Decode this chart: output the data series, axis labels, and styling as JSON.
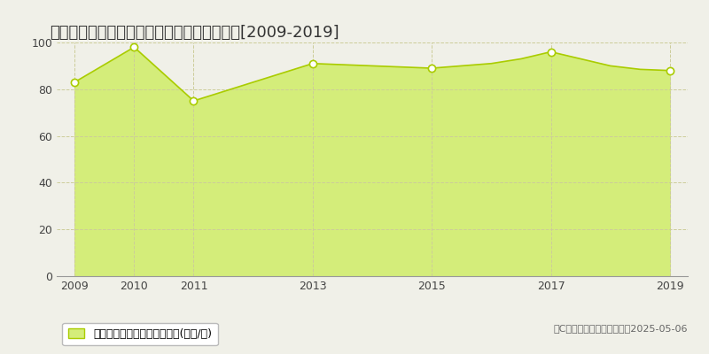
{
  "title": "大阪狹山市池尻自由丘　マンション価格抚移[2009-2019]",
  "years": [
    2009,
    2010,
    2011,
    2013,
    2013.5,
    2014,
    2014.5,
    2015,
    2015.5,
    2016,
    2016.5,
    2017,
    2017.5,
    2018,
    2018.5,
    2019
  ],
  "values": [
    83,
    98,
    75,
    91,
    90.5,
    90,
    89.5,
    89,
    90,
    91,
    93,
    96,
    93,
    90,
    88.5,
    88
  ],
  "key_years": [
    2009,
    2010,
    2011,
    2013,
    2015,
    2017,
    2019
  ],
  "key_values": [
    83,
    98,
    75,
    91,
    89,
    96,
    88
  ],
  "line_color": "#aacc00",
  "fill_color": "#d4ed7a",
  "marker_facecolor": "#ffffff",
  "marker_edgecolor": "#aacc00",
  "grid_color": "#cccc99",
  "background_color": "#f0f0e8",
  "plot_bg_color": "#f0f0e8",
  "xlim": [
    2008.7,
    2019.3
  ],
  "ylim": [
    0,
    100
  ],
  "yticks": [
    0,
    20,
    40,
    60,
    80,
    100
  ],
  "xticks": [
    2009,
    2010,
    2011,
    2013,
    2015,
    2017,
    2019
  ],
  "legend_label": "マンション価格　平均嵪単価(万円/嵪)",
  "copyright_text": "（C）土地価格ドットコム　2025-05-06",
  "title_fontsize": 13,
  "axis_fontsize": 9,
  "legend_fontsize": 9,
  "copyright_fontsize": 8
}
